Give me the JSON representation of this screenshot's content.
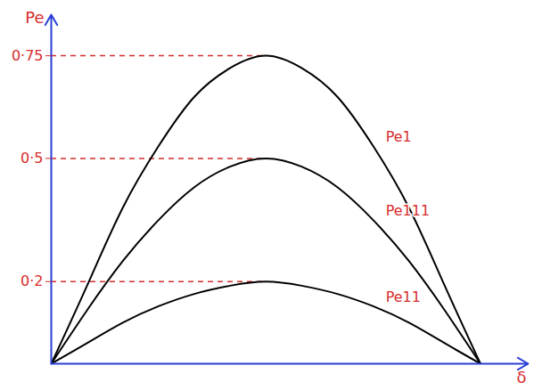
{
  "chart_data": {
    "type": "line",
    "x_label": "δ",
    "y_label": "Pe",
    "x": [
      0,
      15,
      30,
      45,
      60,
      75,
      90,
      105,
      120,
      135,
      150,
      165,
      180
    ],
    "series": [
      {
        "name": "Pe1",
        "color": "#000000",
        "values": [
          0,
          0.19,
          0.38,
          0.53,
          0.65,
          0.72,
          0.75,
          0.72,
          0.65,
          0.53,
          0.38,
          0.19,
          0
        ]
      },
      {
        "name": "Pe111",
        "color": "#000000",
        "values": [
          0,
          0.13,
          0.25,
          0.35,
          0.43,
          0.48,
          0.5,
          0.48,
          0.43,
          0.35,
          0.25,
          0.13,
          0
        ]
      },
      {
        "name": "Pe11",
        "color": "#000000",
        "values": [
          0,
          0.05,
          0.1,
          0.14,
          0.17,
          0.19,
          0.2,
          0.19,
          0.17,
          0.14,
          0.1,
          0.05,
          0
        ]
      }
    ],
    "xlim": [
      0,
      200
    ],
    "ylim": [
      0,
      0.85
    ],
    "yticks": [
      {
        "value": 0.2,
        "label": "0·2"
      },
      {
        "value": 0.5,
        "label": "0·5"
      },
      {
        "value": 0.75,
        "label": "0·75"
      }
    ],
    "tick_labels": "y",
    "grid": false
  }
}
